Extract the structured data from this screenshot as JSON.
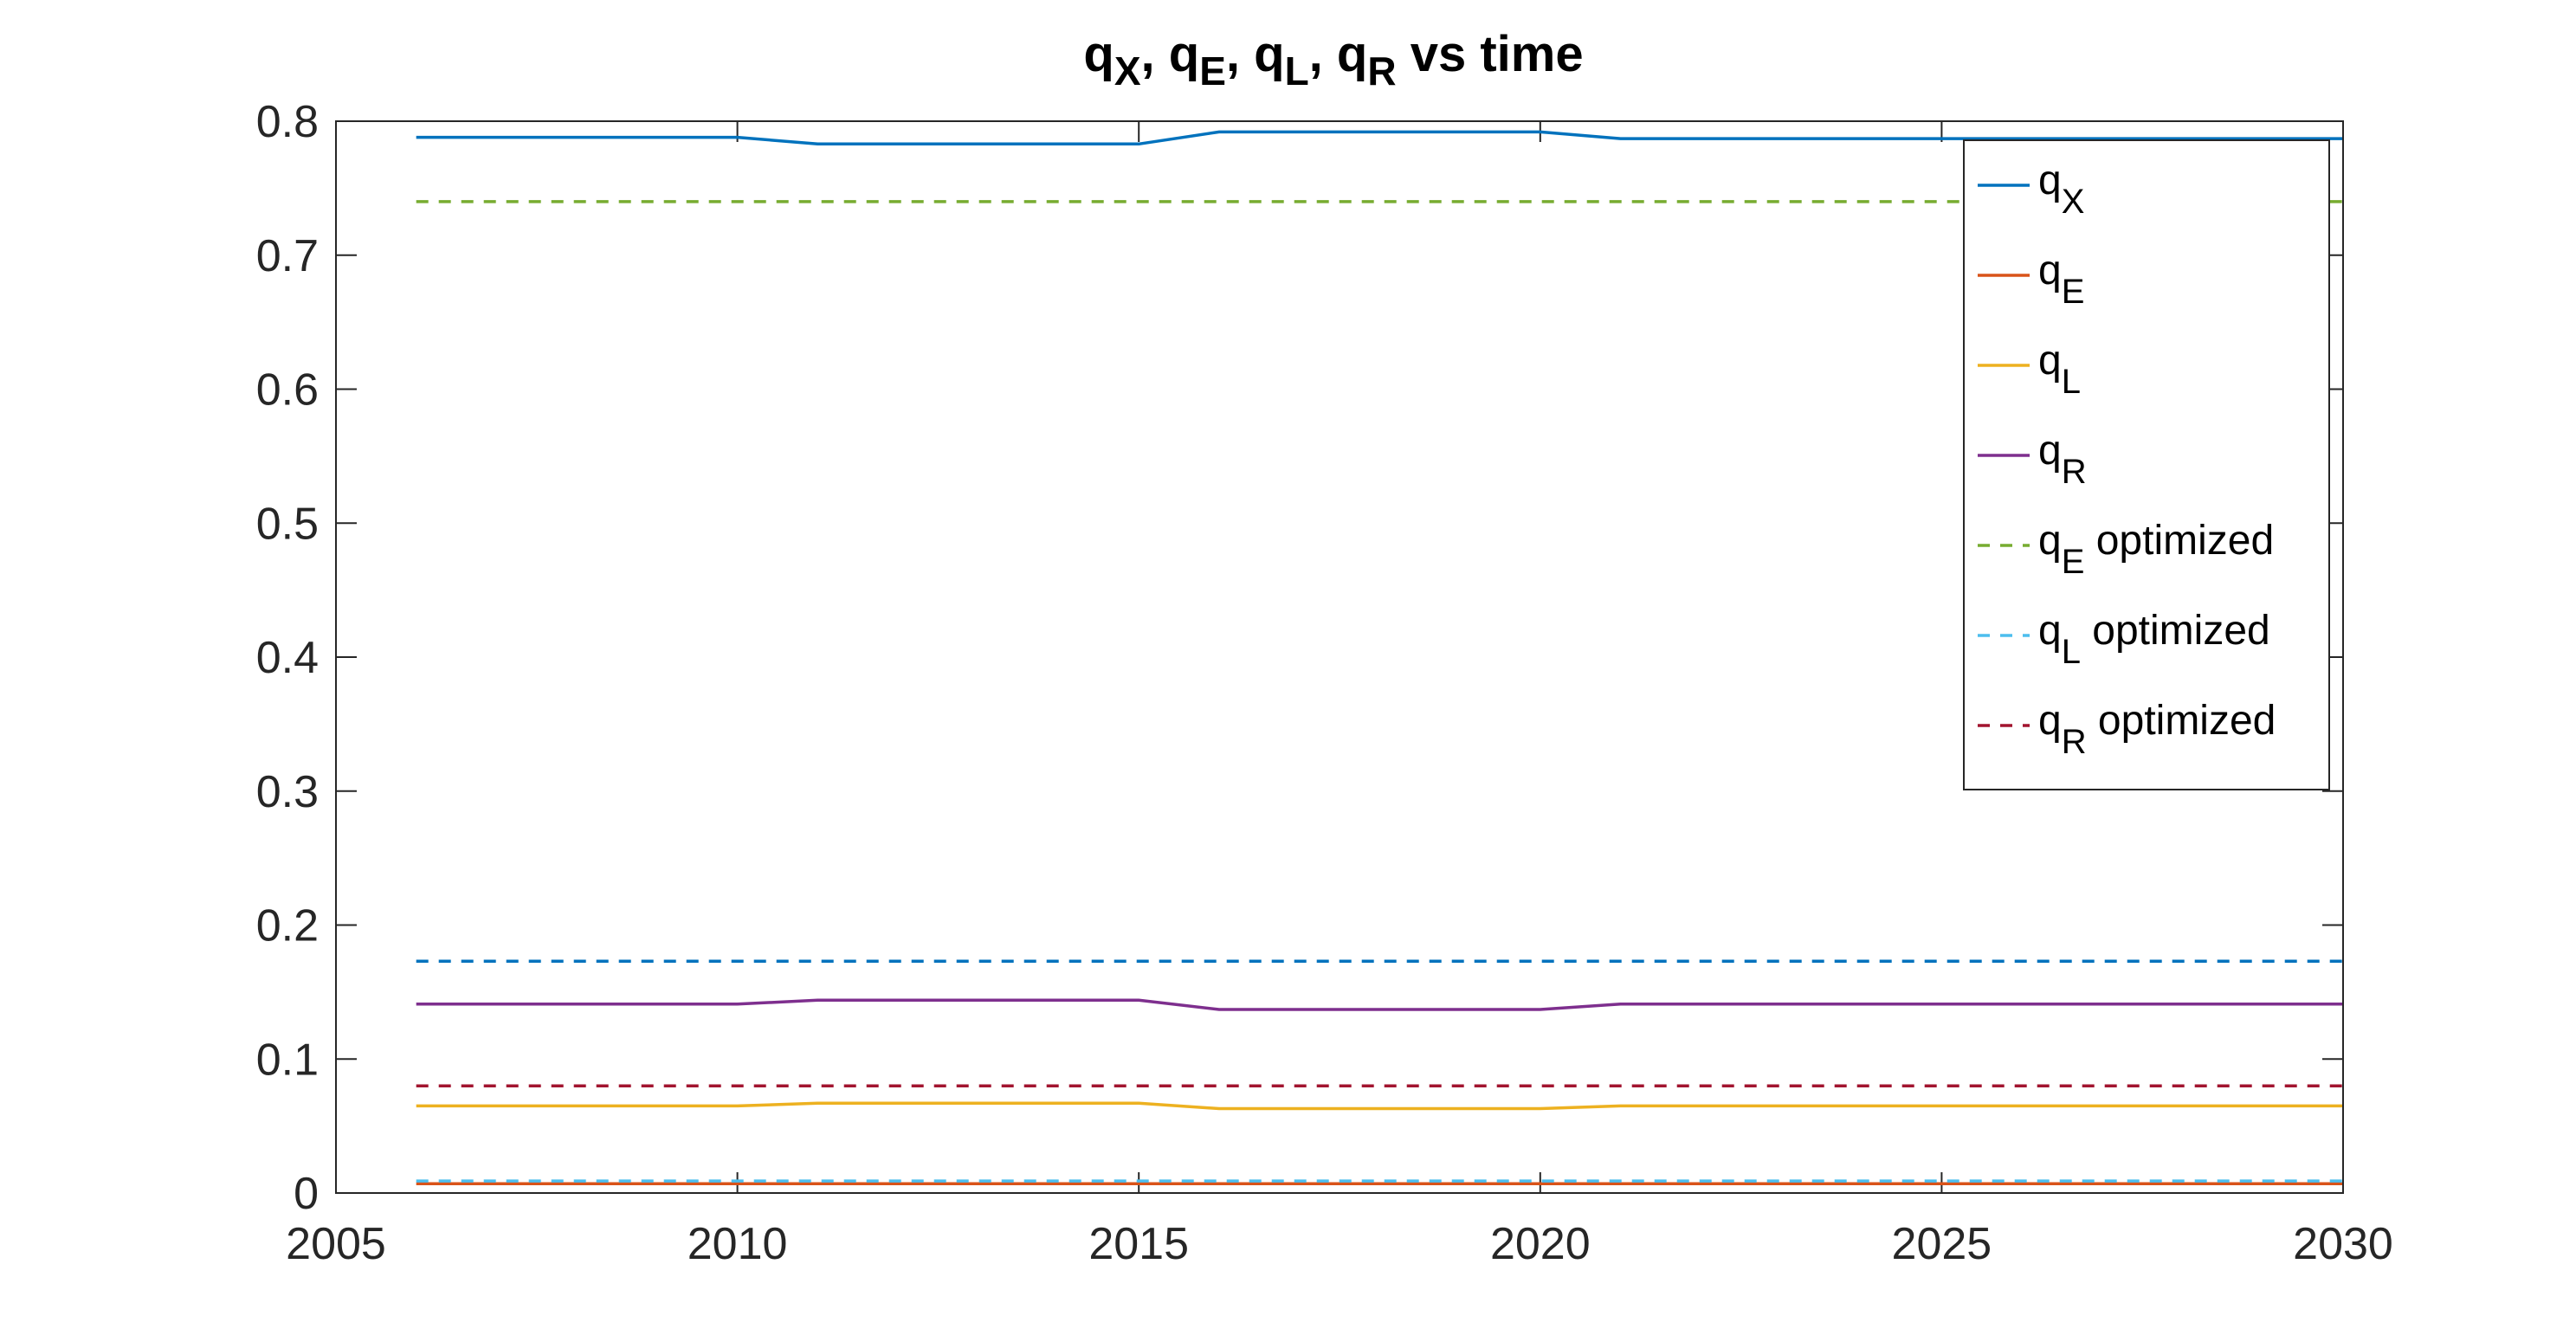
{
  "chart_data": {
    "type": "line",
    "title": {
      "parts": [
        {
          "t": "q"
        },
        {
          "sub": "X"
        },
        {
          "t": ", q"
        },
        {
          "sub": "E"
        },
        {
          "t": ", q"
        },
        {
          "sub": "L"
        },
        {
          "t": ", q"
        },
        {
          "sub": "R"
        },
        {
          "t": " vs time"
        }
      ]
    },
    "xlim": [
      2005,
      2030
    ],
    "ylim": [
      0,
      0.8
    ],
    "xticks": [
      "2005",
      "2010",
      "2015",
      "2020",
      "2025",
      "2030"
    ],
    "yticks": [
      "0",
      "0.1",
      "0.2",
      "0.3",
      "0.4",
      "0.5",
      "0.6",
      "0.7",
      "0.8"
    ],
    "legend_position": "top-right",
    "series": [
      {
        "legend": {
          "base": "q",
          "sub": "X",
          "suffix": ""
        },
        "color": "#0072BD",
        "dash": "solid",
        "x": [
          2006,
          2010,
          2011,
          2015,
          2016,
          2020,
          2021,
          2030
        ],
        "y": [
          0.788,
          0.788,
          0.783,
          0.783,
          0.792,
          0.792,
          0.787,
          0.787
        ]
      },
      {
        "legend": {
          "base": "q",
          "sub": "E",
          "suffix": ""
        },
        "color": "#D95319",
        "dash": "solid",
        "x": [
          2006,
          2010,
          2011,
          2015,
          2016,
          2020,
          2021,
          2030
        ],
        "y": [
          0.007,
          0.007,
          0.007,
          0.007,
          0.007,
          0.007,
          0.007,
          0.007
        ]
      },
      {
        "legend": {
          "base": "q",
          "sub": "L",
          "suffix": ""
        },
        "color": "#EDB120",
        "dash": "solid",
        "x": [
          2006,
          2010,
          2011,
          2015,
          2016,
          2020,
          2021,
          2030
        ],
        "y": [
          0.065,
          0.065,
          0.067,
          0.067,
          0.063,
          0.063,
          0.065,
          0.065
        ]
      },
      {
        "legend": {
          "base": "q",
          "sub": "R",
          "suffix": ""
        },
        "color": "#7E2F8E",
        "dash": "solid",
        "x": [
          2006,
          2010,
          2011,
          2015,
          2016,
          2020,
          2021,
          2030
        ],
        "y": [
          0.141,
          0.141,
          0.144,
          0.144,
          0.137,
          0.137,
          0.141,
          0.141
        ]
      },
      {
        "legend": {
          "base": "q",
          "sub": "E",
          "suffix": " optimized"
        },
        "color": "#77AC30",
        "dash": "dashed",
        "x": [
          2006,
          2030
        ],
        "y": [
          0.74,
          0.74
        ]
      },
      {
        "legend": {
          "base": "q",
          "sub": "L",
          "suffix": " optimized"
        },
        "color": "#4DBEEE",
        "dash": "dashed",
        "x": [
          2006,
          2030
        ],
        "y": [
          0.009,
          0.009
        ]
      },
      {
        "legend": {
          "base": "q",
          "sub": "R",
          "suffix": " optimized"
        },
        "color": "#A2142F",
        "dash": "dashed",
        "x": [
          2006,
          2030
        ],
        "y": [
          0.08,
          0.08
        ]
      },
      {
        "legend": null,
        "color": "#0072BD",
        "dash": "dashed",
        "x": [
          2006,
          2030
        ],
        "y": [
          0.173,
          0.173
        ]
      }
    ]
  }
}
